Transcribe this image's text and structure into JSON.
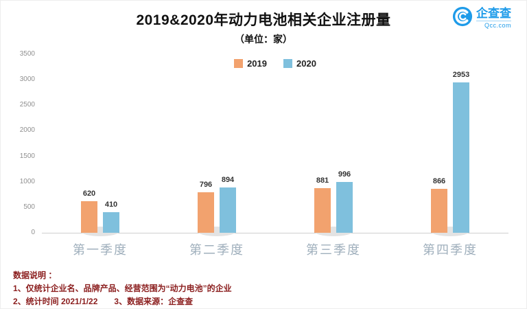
{
  "header": {
    "title": "2019&2020年动力电池相关企业注册量",
    "subtitle": "（单位：家）"
  },
  "logo": {
    "name": "企查查",
    "domain": "Qcc.com",
    "brand_color": "#1E9BE9"
  },
  "chart_data": {
    "type": "bar",
    "title": "2019&2020年动力电池相关企业注册量",
    "subtitle": "（单位：家）",
    "categories": [
      "第一季度",
      "第二季度",
      "第三季度",
      "第四季度"
    ],
    "series": [
      {
        "name": "2019",
        "color": "#F2A26E",
        "values": [
          620,
          796,
          881,
          866
        ]
      },
      {
        "name": "2020",
        "color": "#7FC0DD",
        "values": [
          410,
          894,
          996,
          2953
        ]
      }
    ],
    "ylim": [
      0,
      3500
    ],
    "yticks": [
      0,
      500,
      1000,
      1500,
      2000,
      2500,
      3000,
      3500
    ],
    "legend_position": "top-center",
    "grid": false,
    "value_labels": true
  },
  "notes": [
    "数据说明 ：",
    "1、仅统计企业名、品牌产品、经营范围为“动力电池”的企业",
    "2、统计时间 2021/1/22　　3、数据来源：企查查"
  ]
}
